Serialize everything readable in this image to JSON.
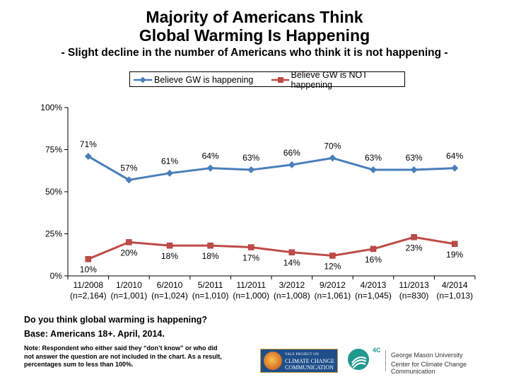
{
  "chart_data": {
    "type": "line",
    "title": "Majority of Americans Think Global Warming Is Happening",
    "title_lines": [
      "Majority of Americans Think",
      "Global Warming Is Happening"
    ],
    "subtitle": "- Slight decline in the number of Americans who think it is not happening -",
    "categories": [
      "11/2008",
      "1/2010",
      "6/2010",
      "5/2011",
      "11/2011",
      "3/2012",
      "9/2012",
      "4/2013",
      "11/2013",
      "4/2014"
    ],
    "category_samples": [
      "(n=2,164)",
      "(n=1,001)",
      "(n=1,024)",
      "(n=1,010)",
      "(n=1,000)",
      "(n=1,008)",
      "(n=1,061)",
      "(n=1,045)",
      "(n=830)",
      "(n=1,013)"
    ],
    "series": [
      {
        "name": "Believe GW is happening",
        "values": [
          71,
          57,
          61,
          64,
          63,
          66,
          70,
          63,
          63,
          64
        ],
        "labels": [
          "71%",
          "57%",
          "61%",
          "64%",
          "63%",
          "66%",
          "70%",
          "63%",
          "63%",
          "64%"
        ],
        "color": "#4a7ebb",
        "marker": "diamond"
      },
      {
        "name": "Believe GW is NOT happening",
        "values": [
          10,
          20,
          18,
          18,
          17,
          14,
          12,
          16,
          23,
          19
        ],
        "labels": [
          "10%",
          "20%",
          "18%",
          "18%",
          "17%",
          "14%",
          "12%",
          "16%",
          "23%",
          "19%"
        ],
        "color": "#be4b48",
        "marker": "square"
      }
    ],
    "y_ticks": [
      0,
      25,
      50,
      75,
      100
    ],
    "y_tick_labels": [
      "0%",
      "25%",
      "50%",
      "75%",
      "100%"
    ],
    "ylim": [
      0,
      100
    ],
    "legend_position": "top",
    "grid": false
  },
  "footer": {
    "question": "Do you think global warming is happening?",
    "base": "Base: Americans 18+. April, 2014.",
    "note": "Note: Respondent who either said they “don’t know” or who did not answer the question are not included in the chart. As a result, percentages sum to less than 100%."
  },
  "logos": {
    "ycc_small": "YALE PROJECT ON",
    "ycc_line1": "CLIMATE CHANGE",
    "ycc_line2": "COMMUNICATION",
    "c4_label": "4C",
    "gmu_line1": "George Mason University",
    "gmu_line2": "Center for Climate Change Communication"
  }
}
